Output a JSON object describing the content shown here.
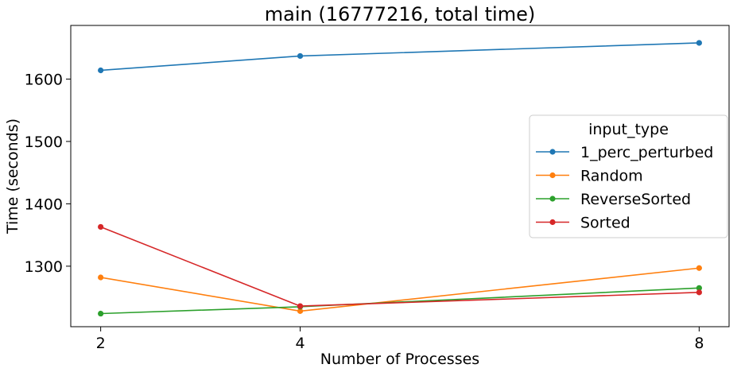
{
  "chart_data": {
    "type": "line",
    "title": "main (16777216, total time)",
    "xlabel": "Number of Processes",
    "ylabel": "Time (seconds)",
    "x": [
      2,
      4,
      8
    ],
    "x_ticks": [
      "2",
      "4",
      "8"
    ],
    "y_ticks": [
      1300,
      1400,
      1500,
      1600
    ],
    "xlim": [
      1.7,
      8.3
    ],
    "ylim": [
      1203,
      1686
    ],
    "grid": false,
    "legend": {
      "title": "input_type",
      "placement": "center-right"
    },
    "series": [
      {
        "name": "1_perc_perturbed",
        "color": "#1f77b4",
        "values": [
          1614,
          1637,
          1658
        ]
      },
      {
        "name": "Random",
        "color": "#ff7f0e",
        "values": [
          1282,
          1228,
          1297
        ]
      },
      {
        "name": "ReverseSorted",
        "color": "#2ca02c",
        "values": [
          1224,
          1235,
          1265
        ]
      },
      {
        "name": "Sorted",
        "color": "#d62728",
        "values": [
          1363,
          1236,
          1258
        ]
      }
    ]
  }
}
